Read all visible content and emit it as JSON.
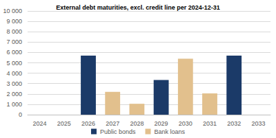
{
  "chart_data": {
    "type": "bar",
    "title": "External debt maturities, excl. credit line per 2024-12-31",
    "categories": [
      "2024",
      "2025",
      "2026",
      "2027",
      "2028",
      "2029",
      "2030",
      "2031",
      "2032",
      "2033"
    ],
    "series": [
      {
        "name": "Public bonds",
        "color": "#1b3a68",
        "values": [
          null,
          null,
          5700,
          null,
          null,
          3350,
          null,
          null,
          5700,
          null
        ]
      },
      {
        "name": "Bank loans",
        "color": "#e2c08d",
        "values": [
          null,
          null,
          null,
          2200,
          1050,
          null,
          5400,
          2050,
          null,
          null
        ]
      }
    ],
    "ylim": [
      0,
      10000
    ],
    "yticks": [
      0,
      {
        "value": 1000,
        "label": "1 000"
      },
      {
        "value": 2000,
        "label": "2 000"
      },
      {
        "value": 3000,
        "label": "3 000"
      },
      {
        "value": 4000,
        "label": "4 000"
      },
      {
        "value": 5000,
        "label": "5 000"
      },
      {
        "value": 6000,
        "label": "6 000"
      },
      {
        "value": 7000,
        "label": "7 000"
      },
      {
        "value": 8000,
        "label": "8 000"
      },
      {
        "value": 9000,
        "label": "9 000"
      },
      {
        "value": 10000,
        "label": "10 000"
      }
    ],
    "grid": true,
    "legend": "bottom"
  }
}
